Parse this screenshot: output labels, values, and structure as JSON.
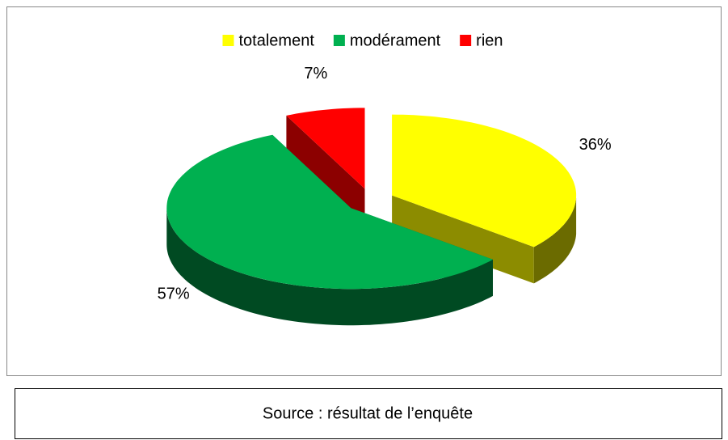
{
  "chart_data": {
    "type": "pie3d",
    "categories": [
      "totalement",
      "modérament",
      "rien"
    ],
    "values": [
      36,
      57,
      7
    ],
    "value_labels": [
      "36%",
      "57%",
      "7%"
    ],
    "colors": [
      "#ffff00",
      "#00b050",
      "#ff0000"
    ],
    "legend": "top",
    "exploded": true
  },
  "source": "Source : résultat de l’enquête"
}
